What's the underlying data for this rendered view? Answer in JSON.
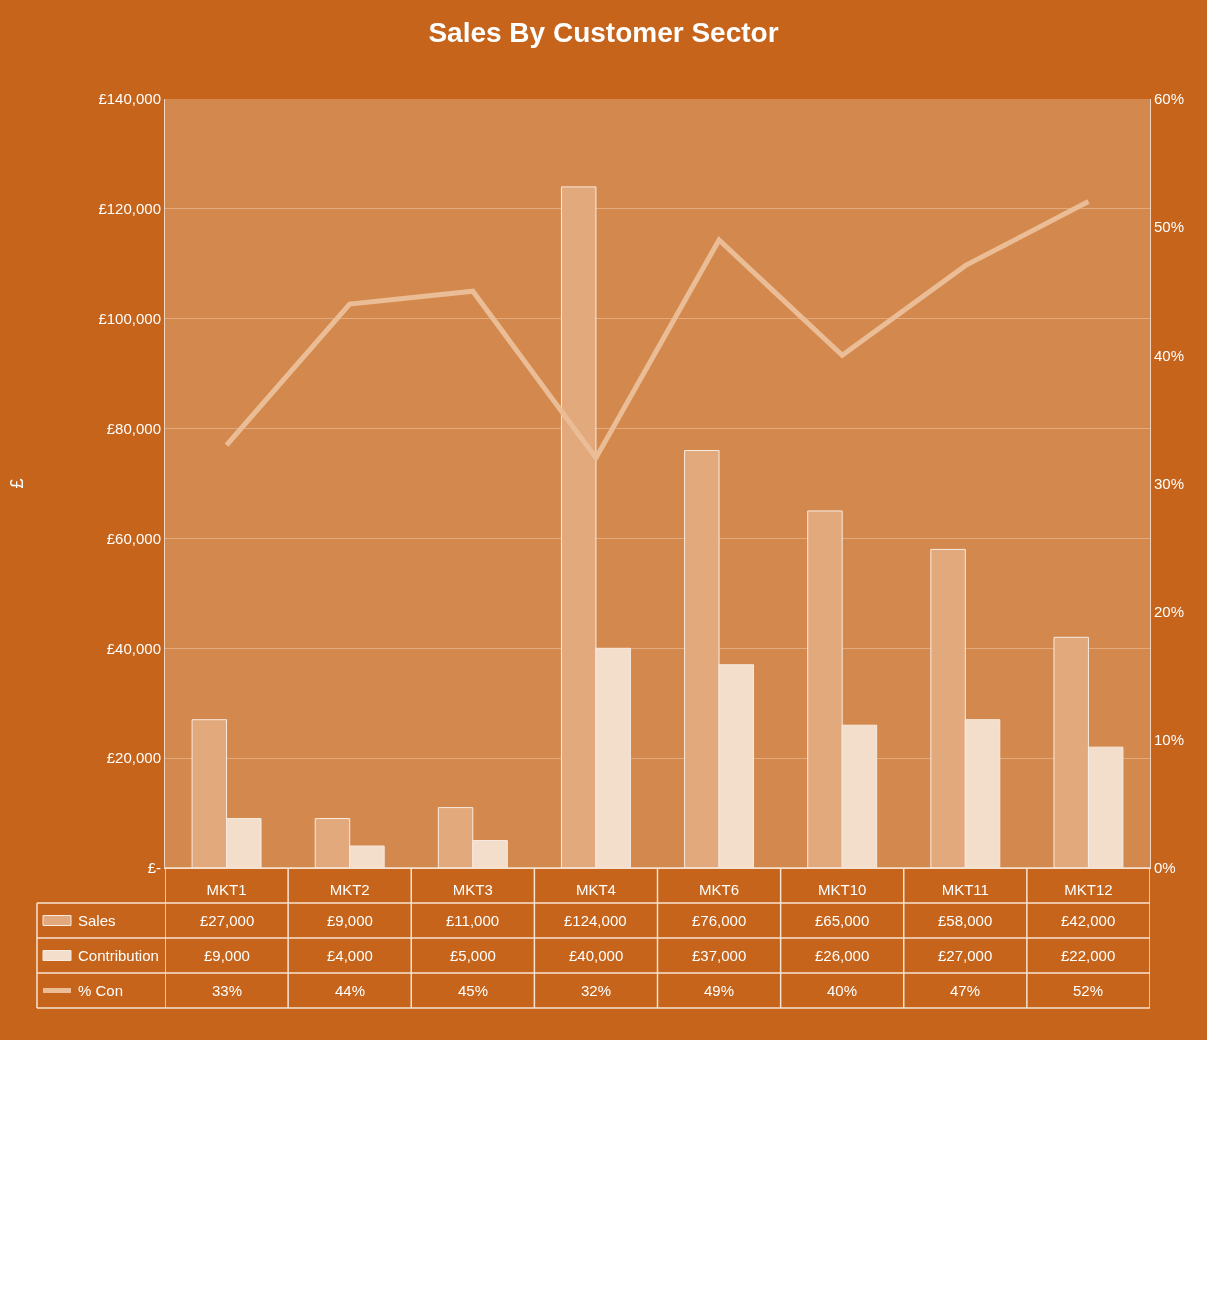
{
  "chart_data": {
    "type": "bar",
    "title": "Sales By Customer Sector",
    "ylabel": "£",
    "categories": [
      "MKT1",
      "MKT2",
      "MKT3",
      "MKT4",
      "MKT6",
      "MKT10",
      "MKT11",
      "MKT12"
    ],
    "series": [
      {
        "name": "Sales",
        "color": "#e2a97c",
        "values": [
          27000,
          9000,
          11000,
          124000,
          76000,
          65000,
          58000,
          42000
        ],
        "value_labels": [
          "£27,000",
          "£9,000",
          "£11,000",
          "£124,000",
          "£76,000",
          "£65,000",
          "£58,000",
          "£42,000"
        ]
      },
      {
        "name": "Contribution",
        "color": "#f3ddcb",
        "values": [
          9000,
          4000,
          5000,
          40000,
          37000,
          26000,
          27000,
          22000
        ],
        "value_labels": [
          "£9,000",
          "£4,000",
          "£5,000",
          "£40,000",
          "£37,000",
          "£26,000",
          "£27,000",
          "£22,000"
        ]
      },
      {
        "name": "% Con",
        "type": "line",
        "axis": "y2",
        "color": "#ebbd96",
        "values": [
          33,
          44,
          45,
          32,
          49,
          40,
          47,
          52
        ],
        "value_labels": [
          "33%",
          "44%",
          "45%",
          "32%",
          "49%",
          "40%",
          "47%",
          "52%"
        ]
      }
    ],
    "ylim": [
      0,
      140000
    ],
    "yticks": [
      {
        "value": 0,
        "label": "£-"
      },
      {
        "value": 20000,
        "label": "£20,000"
      },
      {
        "value": 40000,
        "label": "£40,000"
      },
      {
        "value": 60000,
        "label": "£60,000"
      },
      {
        "value": 80000,
        "label": "£80,000"
      },
      {
        "value": 100000,
        "label": "£100,000"
      },
      {
        "value": 120000,
        "label": "£120,000"
      },
      {
        "value": 140000,
        "label": "£140,000"
      }
    ],
    "y2lim": [
      0,
      60
    ],
    "y2ticks": [
      {
        "value": 0,
        "label": "0%"
      },
      {
        "value": 10,
        "label": "10%"
      },
      {
        "value": 20,
        "label": "20%"
      },
      {
        "value": 30,
        "label": "30%"
      },
      {
        "value": 40,
        "label": "40%"
      },
      {
        "value": 50,
        "label": "50%"
      },
      {
        "value": 60,
        "label": "60%"
      }
    ],
    "grid": "y",
    "legend": "bottom left",
    "line_style": "solid",
    "marker": "none"
  }
}
